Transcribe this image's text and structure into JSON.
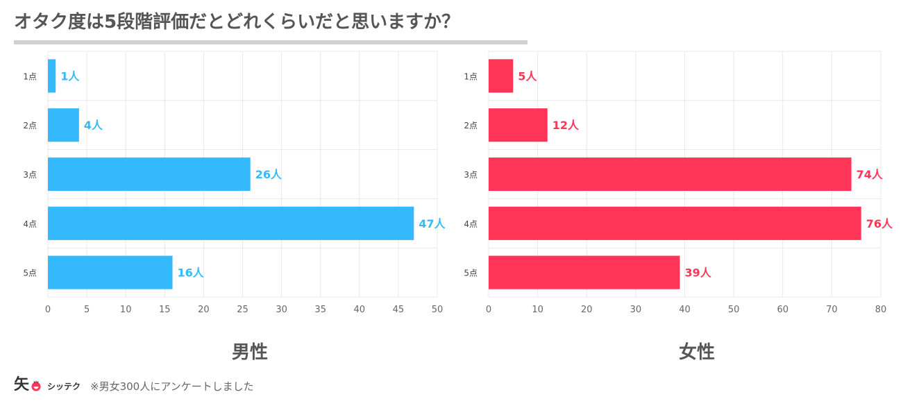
{
  "title": "オタク度は5段階評価だとどれくらいだと思いますか？",
  "colors": {
    "male": "#35b9fd",
    "female": "#ff3558",
    "grid": "#e8e8e8"
  },
  "chart_data": [
    {
      "type": "bar",
      "orientation": "horizontal",
      "caption": "男性",
      "categories": [
        "1点",
        "2点",
        "3点",
        "4点",
        "5点"
      ],
      "values": [
        1,
        4,
        26,
        47,
        16
      ],
      "data_labels": [
        "1人",
        "4人",
        "26人",
        "47人",
        "16人"
      ],
      "xlim": [
        0,
        50
      ],
      "xticks": [
        0,
        5,
        10,
        15,
        20,
        25,
        30,
        35,
        40,
        45,
        50
      ],
      "grid": true,
      "color": "#35b9fd"
    },
    {
      "type": "bar",
      "orientation": "horizontal",
      "caption": "女性",
      "categories": [
        "1点",
        "2点",
        "3点",
        "4点",
        "5点"
      ],
      "values": [
        5,
        12,
        74,
        76,
        39
      ],
      "data_labels": [
        "5人",
        "12人",
        "74人",
        "76人",
        "39人"
      ],
      "xlim": [
        0,
        80
      ],
      "xticks": [
        0,
        10,
        20,
        30,
        40,
        50,
        60,
        70,
        80
      ],
      "grid": true,
      "color": "#ff3558"
    }
  ],
  "footer": {
    "logo_mark": "矢",
    "brand": "シッテク",
    "note": "※男女300人にアンケートしました"
  }
}
